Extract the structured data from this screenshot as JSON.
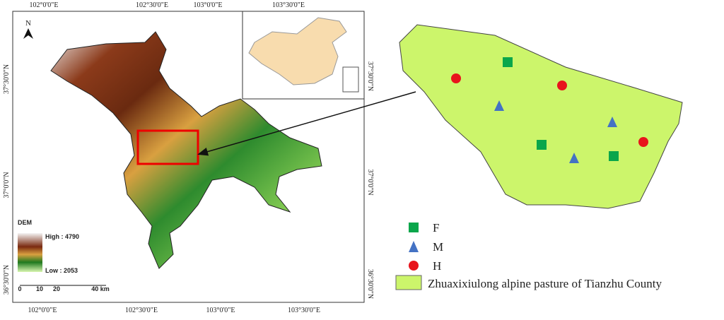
{
  "map": {
    "north": "N",
    "lon_labels": [
      "102°0'0\"E",
      "102°30'0\"E",
      "103°0'0\"E",
      "103°30'0\"E"
    ],
    "lat_labels": [
      "37°30'0\"N",
      "37°0'0\"N",
      "36°30'0\"N"
    ],
    "dem": {
      "title": "DEM",
      "high": "High : 4790",
      "low": "Low : 2053"
    },
    "scale": [
      "0",
      "10",
      "20",
      "40 km"
    ]
  },
  "legend": {
    "F": "F",
    "M": "M",
    "H": "H",
    "area": "Zhuaxixiulong alpine pasture of Tianzhu County"
  }
}
